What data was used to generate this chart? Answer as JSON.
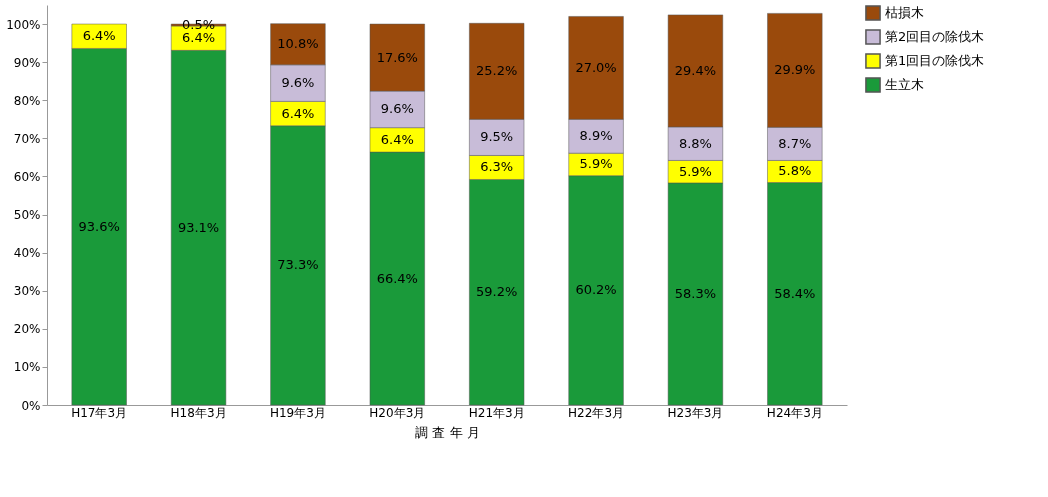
{
  "chart_data": {
    "type": "bar",
    "stacked": true,
    "xlabel": "調 査 年 月",
    "categories": [
      "H17年3月",
      "H18年3月",
      "H19年3月",
      "H20年3月",
      "H21年3月",
      "H22年3月",
      "H23年3月",
      "H24年3月"
    ],
    "ylim": [
      0,
      105
    ],
    "yticks": [
      {
        "value": 0,
        "label": "0%"
      },
      {
        "value": 10,
        "label": "10%"
      },
      {
        "value": 20,
        "label": "20%"
      },
      {
        "value": 30,
        "label": "30%"
      },
      {
        "value": 40,
        "label": "40%"
      },
      {
        "value": 50,
        "label": "50%"
      },
      {
        "value": 60,
        "label": "60%"
      },
      {
        "value": 70,
        "label": "70%"
      },
      {
        "value": 80,
        "label": "80%"
      },
      {
        "value": 90,
        "label": "90%"
      },
      {
        "value": 100,
        "label": "100%"
      }
    ],
    "grid": false,
    "legend": "right",
    "series": [
      {
        "name": "生立木",
        "color": "#1a9a3a",
        "values": [
          93.6,
          93.1,
          73.3,
          66.4,
          59.2,
          60.2,
          58.3,
          58.4
        ],
        "value_labels": [
          "93.6%",
          "93.1%",
          "73.3%",
          "66.4%",
          "59.2%",
          "60.2%",
          "58.3%",
          "58.4%"
        ]
      },
      {
        "name": "第1回目の除伐木",
        "color": "#ffff00",
        "values": [
          6.4,
          6.4,
          6.4,
          6.4,
          6.3,
          5.9,
          5.9,
          5.8
        ],
        "value_labels": [
          "6.4%",
          "6.4%",
          "6.4%",
          "6.4%",
          "6.3%",
          "5.9%",
          "5.9%",
          "5.8%"
        ]
      },
      {
        "name": "第2回目の除伐木",
        "color": "#c8bcd8",
        "values": [
          null,
          null,
          9.6,
          9.6,
          9.5,
          8.9,
          8.8,
          8.7
        ],
        "value_labels": [
          null,
          null,
          "9.6%",
          "9.6%",
          "9.5%",
          "8.9%",
          "8.8%",
          "8.7%"
        ]
      },
      {
        "name": "枯損木",
        "color": "#9a4a0c",
        "values": [
          null,
          0.5,
          10.8,
          17.6,
          25.2,
          27.0,
          29.4,
          29.9
        ],
        "value_labels": [
          null,
          "0.5%",
          "10.8%",
          "17.6%",
          "25.2%",
          "27.0%",
          "29.4%",
          "29.9%"
        ]
      }
    ]
  }
}
